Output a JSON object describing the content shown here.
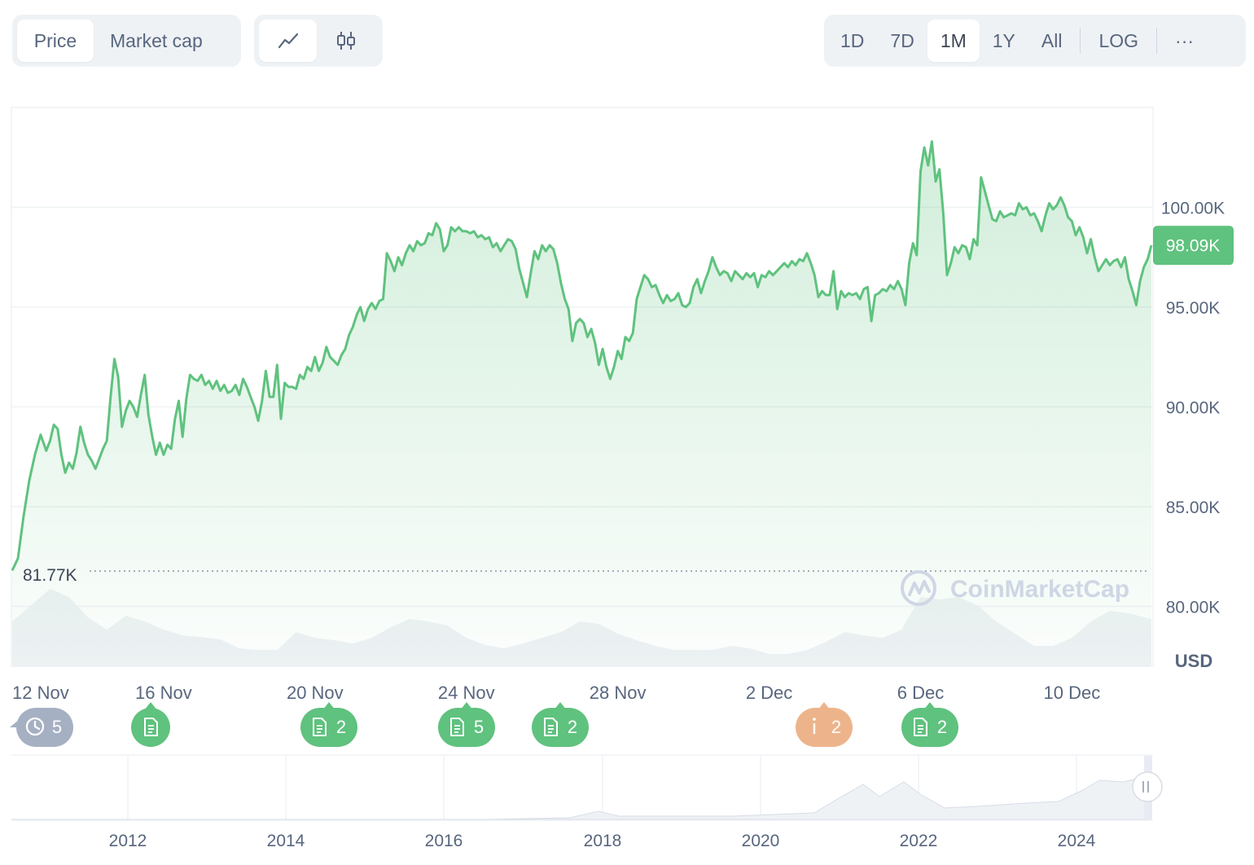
{
  "toolbar": {
    "metric_tabs": [
      {
        "label": "Price",
        "active": true
      },
      {
        "label": "Market cap",
        "active": false
      }
    ],
    "chart_types": [
      {
        "icon": "line-chart-icon",
        "active": true
      },
      {
        "icon": "candlestick-icon",
        "active": false
      }
    ],
    "ranges": [
      {
        "label": "1D",
        "active": false
      },
      {
        "label": "7D",
        "active": false
      },
      {
        "label": "1M",
        "active": true
      },
      {
        "label": "1Y",
        "active": false
      },
      {
        "label": "All",
        "active": false
      }
    ],
    "log_label": "LOG",
    "more_label": "···"
  },
  "chart_data": {
    "type": "area",
    "y_ticks": [
      "100.00K",
      "95.00K",
      "90.00K",
      "85.00K",
      "80.00K"
    ],
    "y_tick_values": [
      100000,
      95000,
      90000,
      85000,
      80000
    ],
    "ylim": [
      77000,
      105000
    ],
    "x_ticks": [
      "12 Nov",
      "16 Nov",
      "20 Nov",
      "24 Nov",
      "28 Nov",
      "2 Dec",
      "6 Dec",
      "10 Dec"
    ],
    "xlim": [
      0,
      30.1
    ],
    "x_tick_values": [
      0,
      4,
      8,
      12,
      16,
      20,
      24,
      28
    ],
    "current_price_label": "98.09K",
    "current_price": 98090,
    "min_price_label": "81.77K",
    "min_price": 81770,
    "currency": "USD",
    "watermark": "CoinMarketCap",
    "colors": {
      "line": "#5fc27e",
      "fill": "#d4f1dd",
      "badge": "#5fc27e",
      "volume": "#eff2f5"
    },
    "price_points": [
      [
        0.0,
        81800
      ],
      [
        0.15,
        82400
      ],
      [
        0.3,
        84500
      ],
      [
        0.45,
        86300
      ],
      [
        0.6,
        87600
      ],
      [
        0.75,
        88600
      ],
      [
        0.9,
        87800
      ],
      [
        1.0,
        88300
      ],
      [
        1.1,
        89100
      ],
      [
        1.2,
        88900
      ],
      [
        1.3,
        87600
      ],
      [
        1.4,
        86700
      ],
      [
        1.5,
        87200
      ],
      [
        1.6,
        86900
      ],
      [
        1.7,
        87700
      ],
      [
        1.8,
        89000
      ],
      [
        1.9,
        88200
      ],
      [
        2.0,
        87600
      ],
      [
        2.1,
        87300
      ],
      [
        2.2,
        86900
      ],
      [
        2.3,
        87400
      ],
      [
        2.4,
        87900
      ],
      [
        2.5,
        88300
      ],
      [
        2.6,
        90500
      ],
      [
        2.7,
        92400
      ],
      [
        2.8,
        91500
      ],
      [
        2.9,
        89000
      ],
      [
        3.0,
        89800
      ],
      [
        3.1,
        90300
      ],
      [
        3.2,
        90000
      ],
      [
        3.3,
        89500
      ],
      [
        3.4,
        90600
      ],
      [
        3.5,
        91600
      ],
      [
        3.6,
        89600
      ],
      [
        3.7,
        88500
      ],
      [
        3.8,
        87600
      ],
      [
        3.9,
        88200
      ],
      [
        4.0,
        87600
      ],
      [
        4.1,
        88100
      ],
      [
        4.2,
        87900
      ],
      [
        4.3,
        89400
      ],
      [
        4.4,
        90300
      ],
      [
        4.5,
        88500
      ],
      [
        4.6,
        90400
      ],
      [
        4.7,
        91600
      ],
      [
        4.8,
        91400
      ],
      [
        4.9,
        91300
      ],
      [
        5.0,
        91600
      ],
      [
        5.1,
        91100
      ],
      [
        5.2,
        91300
      ],
      [
        5.3,
        90900
      ],
      [
        5.4,
        91300
      ],
      [
        5.5,
        90800
      ],
      [
        5.6,
        91100
      ],
      [
        5.7,
        90700
      ],
      [
        5.8,
        90800
      ],
      [
        5.9,
        91100
      ],
      [
        6.0,
        90600
      ],
      [
        6.1,
        91400
      ],
      [
        6.2,
        91000
      ],
      [
        6.3,
        90500
      ],
      [
        6.4,
        90000
      ],
      [
        6.5,
        89300
      ],
      [
        6.6,
        90300
      ],
      [
        6.7,
        91800
      ],
      [
        6.8,
        90500
      ],
      [
        6.9,
        90500
      ],
      [
        7.0,
        92100
      ],
      [
        7.1,
        89400
      ],
      [
        7.2,
        91200
      ],
      [
        7.3,
        91000
      ],
      [
        7.4,
        91000
      ],
      [
        7.5,
        90900
      ],
      [
        7.6,
        91600
      ],
      [
        7.7,
        91400
      ],
      [
        7.8,
        92000
      ],
      [
        7.9,
        91800
      ],
      [
        8.0,
        92500
      ],
      [
        8.1,
        91800
      ],
      [
        8.2,
        92200
      ],
      [
        8.3,
        93000
      ],
      [
        8.4,
        92500
      ],
      [
        8.5,
        92300
      ],
      [
        8.6,
        92100
      ],
      [
        8.7,
        92600
      ],
      [
        8.8,
        92900
      ],
      [
        8.9,
        93600
      ],
      [
        9.0,
        94000
      ],
      [
        9.1,
        94600
      ],
      [
        9.2,
        95000
      ],
      [
        9.3,
        94300
      ],
      [
        9.4,
        94900
      ],
      [
        9.5,
        95200
      ],
      [
        9.6,
        94900
      ],
      [
        9.7,
        95300
      ],
      [
        9.8,
        95400
      ],
      [
        9.9,
        97700
      ],
      [
        10.0,
        97300
      ],
      [
        10.1,
        96800
      ],
      [
        10.2,
        97500
      ],
      [
        10.3,
        97100
      ],
      [
        10.4,
        97700
      ],
      [
        10.5,
        98100
      ],
      [
        10.6,
        97800
      ],
      [
        10.7,
        98300
      ],
      [
        10.8,
        98100
      ],
      [
        10.9,
        98200
      ],
      [
        11.0,
        98700
      ],
      [
        11.1,
        98600
      ],
      [
        11.2,
        99200
      ],
      [
        11.3,
        98900
      ],
      [
        11.4,
        97800
      ],
      [
        11.5,
        98100
      ],
      [
        11.6,
        99000
      ],
      [
        11.7,
        98800
      ],
      [
        11.8,
        99000
      ],
      [
        11.9,
        98800
      ],
      [
        12.0,
        98800
      ],
      [
        12.1,
        98700
      ],
      [
        12.2,
        98800
      ],
      [
        12.3,
        98500
      ],
      [
        12.4,
        98600
      ],
      [
        12.5,
        98400
      ],
      [
        12.6,
        98500
      ],
      [
        12.7,
        98000
      ],
      [
        12.8,
        98200
      ],
      [
        12.9,
        97800
      ],
      [
        13.0,
        98100
      ],
      [
        13.1,
        98400
      ],
      [
        13.2,
        98300
      ],
      [
        13.3,
        97900
      ],
      [
        13.4,
        96900
      ],
      [
        13.5,
        96200
      ],
      [
        13.6,
        95500
      ],
      [
        13.7,
        96700
      ],
      [
        13.8,
        97800
      ],
      [
        13.9,
        97400
      ],
      [
        14.0,
        98100
      ],
      [
        14.1,
        97800
      ],
      [
        14.2,
        98100
      ],
      [
        14.3,
        97900
      ],
      [
        14.4,
        97200
      ],
      [
        14.5,
        96200
      ],
      [
        14.6,
        95400
      ],
      [
        14.7,
        94900
      ],
      [
        14.8,
        93300
      ],
      [
        14.9,
        94200
      ],
      [
        15.0,
        94400
      ],
      [
        15.1,
        94200
      ],
      [
        15.2,
        93500
      ],
      [
        15.3,
        93900
      ],
      [
        15.4,
        93200
      ],
      [
        15.5,
        92100
      ],
      [
        15.6,
        92900
      ],
      [
        15.7,
        92000
      ],
      [
        15.8,
        91400
      ],
      [
        15.9,
        92000
      ],
      [
        16.0,
        92800
      ],
      [
        16.1,
        92400
      ],
      [
        16.2,
        93500
      ],
      [
        16.3,
        93300
      ],
      [
        16.4,
        93700
      ],
      [
        16.5,
        95400
      ],
      [
        16.6,
        96000
      ],
      [
        16.7,
        96600
      ],
      [
        16.8,
        96400
      ],
      [
        16.9,
        96000
      ],
      [
        17.0,
        96100
      ],
      [
        17.1,
        95600
      ],
      [
        17.2,
        95200
      ],
      [
        17.3,
        95600
      ],
      [
        17.4,
        95300
      ],
      [
        17.5,
        95400
      ],
      [
        17.6,
        95700
      ],
      [
        17.7,
        95100
      ],
      [
        17.8,
        95000
      ],
      [
        17.9,
        95200
      ],
      [
        18.0,
        96000
      ],
      [
        18.1,
        96400
      ],
      [
        18.2,
        95700
      ],
      [
        18.3,
        96300
      ],
      [
        18.4,
        96800
      ],
      [
        18.5,
        97500
      ],
      [
        18.6,
        97000
      ],
      [
        18.7,
        96600
      ],
      [
        18.8,
        96800
      ],
      [
        18.9,
        96700
      ],
      [
        19.0,
        96300
      ],
      [
        19.1,
        96800
      ],
      [
        19.2,
        96600
      ],
      [
        19.3,
        96400
      ],
      [
        19.4,
        96700
      ],
      [
        19.5,
        96500
      ],
      [
        19.6,
        96700
      ],
      [
        19.7,
        96000
      ],
      [
        19.8,
        96600
      ],
      [
        19.9,
        96500
      ],
      [
        20.0,
        96800
      ],
      [
        20.1,
        96600
      ],
      [
        20.2,
        96800
      ],
      [
        20.3,
        97000
      ],
      [
        20.4,
        97200
      ],
      [
        20.5,
        97000
      ],
      [
        20.6,
        97300
      ],
      [
        20.7,
        97100
      ],
      [
        20.8,
        97400
      ],
      [
        20.9,
        97300
      ],
      [
        21.0,
        97700
      ],
      [
        21.1,
        97200
      ],
      [
        21.2,
        96600
      ],
      [
        21.3,
        95500
      ],
      [
        21.4,
        95800
      ],
      [
        21.5,
        95600
      ],
      [
        21.6,
        95600
      ],
      [
        21.7,
        96800
      ],
      [
        21.8,
        94900
      ],
      [
        21.9,
        95800
      ],
      [
        22.0,
        95500
      ],
      [
        22.1,
        95700
      ],
      [
        22.2,
        95600
      ],
      [
        22.3,
        95700
      ],
      [
        22.4,
        95400
      ],
      [
        22.5,
        95900
      ],
      [
        22.6,
        96000
      ],
      [
        22.7,
        94300
      ],
      [
        22.8,
        95600
      ],
      [
        22.9,
        95700
      ],
      [
        23.0,
        95900
      ],
      [
        23.1,
        95800
      ],
      [
        23.2,
        96100
      ],
      [
        23.3,
        95900
      ],
      [
        23.4,
        96300
      ],
      [
        23.5,
        95900
      ],
      [
        23.6,
        95100
      ],
      [
        23.7,
        97200
      ],
      [
        23.8,
        98200
      ],
      [
        23.9,
        97600
      ],
      [
        24.0,
        101800
      ],
      [
        24.1,
        103000
      ],
      [
        24.2,
        102100
      ],
      [
        24.3,
        103300
      ],
      [
        24.4,
        101300
      ],
      [
        24.5,
        101900
      ],
      [
        24.6,
        99700
      ],
      [
        24.7,
        96600
      ],
      [
        24.8,
        97200
      ],
      [
        24.9,
        98000
      ],
      [
        25.0,
        97700
      ],
      [
        25.1,
        98100
      ],
      [
        25.2,
        98000
      ],
      [
        25.3,
        97400
      ],
      [
        25.4,
        98400
      ],
      [
        25.5,
        98100
      ],
      [
        25.6,
        101500
      ],
      [
        25.7,
        100800
      ],
      [
        25.8,
        100100
      ],
      [
        25.9,
        99400
      ],
      [
        26.0,
        99300
      ],
      [
        26.1,
        99800
      ],
      [
        26.2,
        99500
      ],
      [
        26.3,
        99600
      ],
      [
        26.4,
        99700
      ],
      [
        26.5,
        99600
      ],
      [
        26.6,
        100200
      ],
      [
        26.7,
        99900
      ],
      [
        26.8,
        100000
      ],
      [
        26.9,
        99600
      ],
      [
        27.0,
        99700
      ],
      [
        27.1,
        99300
      ],
      [
        27.2,
        98800
      ],
      [
        27.3,
        99600
      ],
      [
        27.4,
        100200
      ],
      [
        27.5,
        99900
      ],
      [
        27.6,
        100100
      ],
      [
        27.7,
        100500
      ],
      [
        27.8,
        100100
      ],
      [
        27.9,
        99500
      ],
      [
        28.0,
        99300
      ],
      [
        28.1,
        98600
      ],
      [
        28.2,
        99000
      ],
      [
        28.3,
        98500
      ],
      [
        28.4,
        97700
      ],
      [
        28.5,
        98400
      ],
      [
        28.6,
        97500
      ],
      [
        28.7,
        96800
      ],
      [
        28.8,
        97100
      ],
      [
        28.9,
        97400
      ],
      [
        29.0,
        97100
      ],
      [
        29.1,
        97300
      ],
      [
        29.2,
        97400
      ],
      [
        29.3,
        97000
      ],
      [
        29.4,
        97500
      ],
      [
        29.5,
        96400
      ],
      [
        29.6,
        95800
      ],
      [
        29.7,
        95100
      ],
      [
        29.8,
        96300
      ],
      [
        29.9,
        97000
      ],
      [
        30.0,
        97400
      ],
      [
        30.1,
        98100
      ]
    ],
    "volume_points": [
      [
        0,
        0.55
      ],
      [
        0.5,
        0.75
      ],
      [
        1.0,
        0.95
      ],
      [
        1.5,
        0.85
      ],
      [
        2.0,
        0.6
      ],
      [
        2.5,
        0.45
      ],
      [
        3.0,
        0.62
      ],
      [
        3.5,
        0.55
      ],
      [
        4.0,
        0.45
      ],
      [
        4.5,
        0.38
      ],
      [
        5.0,
        0.36
      ],
      [
        5.5,
        0.33
      ],
      [
        6.0,
        0.22
      ],
      [
        6.5,
        0.2
      ],
      [
        7.0,
        0.2
      ],
      [
        7.5,
        0.42
      ],
      [
        8.0,
        0.35
      ],
      [
        8.5,
        0.32
      ],
      [
        9.0,
        0.28
      ],
      [
        9.5,
        0.35
      ],
      [
        10.0,
        0.48
      ],
      [
        10.5,
        0.58
      ],
      [
        11.0,
        0.55
      ],
      [
        11.5,
        0.5
      ],
      [
        12.0,
        0.35
      ],
      [
        12.5,
        0.26
      ],
      [
        13.0,
        0.22
      ],
      [
        13.5,
        0.28
      ],
      [
        14.0,
        0.35
      ],
      [
        14.5,
        0.42
      ],
      [
        15.0,
        0.55
      ],
      [
        15.5,
        0.52
      ],
      [
        16.0,
        0.4
      ],
      [
        16.5,
        0.32
      ],
      [
        17.0,
        0.25
      ],
      [
        17.5,
        0.2
      ],
      [
        18.0,
        0.2
      ],
      [
        18.5,
        0.2
      ],
      [
        19.0,
        0.25
      ],
      [
        19.5,
        0.22
      ],
      [
        20.0,
        0.15
      ],
      [
        20.5,
        0.15
      ],
      [
        21.0,
        0.2
      ],
      [
        21.5,
        0.3
      ],
      [
        22.0,
        0.42
      ],
      [
        22.5,
        0.38
      ],
      [
        23.0,
        0.35
      ],
      [
        23.5,
        0.45
      ],
      [
        24.0,
        0.85
      ],
      [
        24.5,
        0.82
      ],
      [
        25.0,
        0.85
      ],
      [
        25.5,
        0.75
      ],
      [
        26.0,
        0.55
      ],
      [
        26.5,
        0.4
      ],
      [
        27.0,
        0.25
      ],
      [
        27.5,
        0.25
      ],
      [
        28.0,
        0.35
      ],
      [
        28.5,
        0.55
      ],
      [
        29.0,
        0.68
      ],
      [
        29.5,
        0.65
      ],
      [
        30.1,
        0.58
      ]
    ]
  },
  "events": [
    {
      "type": "history",
      "count": "5",
      "color": "#a6b0c3"
    },
    {
      "type": "news",
      "count": "",
      "color": "#5fc27e"
    },
    {
      "type": "news",
      "count": "2",
      "color": "#5fc27e"
    },
    {
      "type": "news",
      "count": "5",
      "color": "#5fc27e"
    },
    {
      "type": "news",
      "count": "2",
      "color": "#5fc27e"
    },
    {
      "type": "info",
      "count": "2",
      "color": "#edb48b"
    },
    {
      "type": "news",
      "count": "2",
      "color": "#5fc27e"
    }
  ],
  "navigator": {
    "years": [
      "2012",
      "2014",
      "2016",
      "2018",
      "2020",
      "2022",
      "2024"
    ],
    "handle_icon": "pause-handle-icon"
  }
}
